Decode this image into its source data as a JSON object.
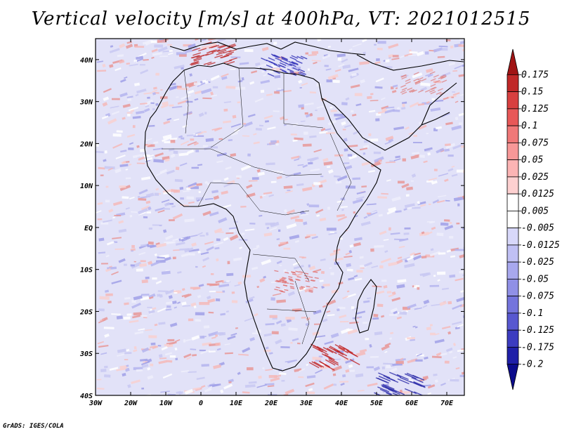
{
  "title": "Vertical velocity [m/s] at 400hPa, VT: 2021012515",
  "credit": "GrADS: IGES/COLA",
  "map": {
    "lon_range": [
      -30,
      75
    ],
    "lat_range": [
      -40,
      45
    ],
    "lon_ticks": [
      "30W",
      "20W",
      "10W",
      "0",
      "10E",
      "20E",
      "30E",
      "40E",
      "50E",
      "60E",
      "70E"
    ],
    "lat_ticks": [
      "40N",
      "30N",
      "20N",
      "10N",
      "EQ",
      "10S",
      "20S",
      "30S",
      "40S"
    ]
  },
  "colorbar": {
    "labels": [
      "0.175",
      "0.15",
      "0.125",
      "0.1",
      "0.075",
      "0.05",
      "0.025",
      "0.0125",
      "0.005",
      "-0.005",
      "-0.0125",
      "-0.025",
      "-0.05",
      "-0.075",
      "-0.1",
      "-0.125",
      "-0.175",
      "-0.2"
    ],
    "colors": [
      "#a01414",
      "#c02828",
      "#d84040",
      "#e85858",
      "#f07878",
      "#f89898",
      "#fcb4b4",
      "#fdd0d0",
      "#ffffff",
      "#ffffff",
      "#d8d8fa",
      "#c0c0f4",
      "#a8a8ee",
      "#9090e6",
      "#7474dc",
      "#5858d0",
      "#3c3cc0",
      "#2020a8",
      "#0c0c8c"
    ]
  }
}
